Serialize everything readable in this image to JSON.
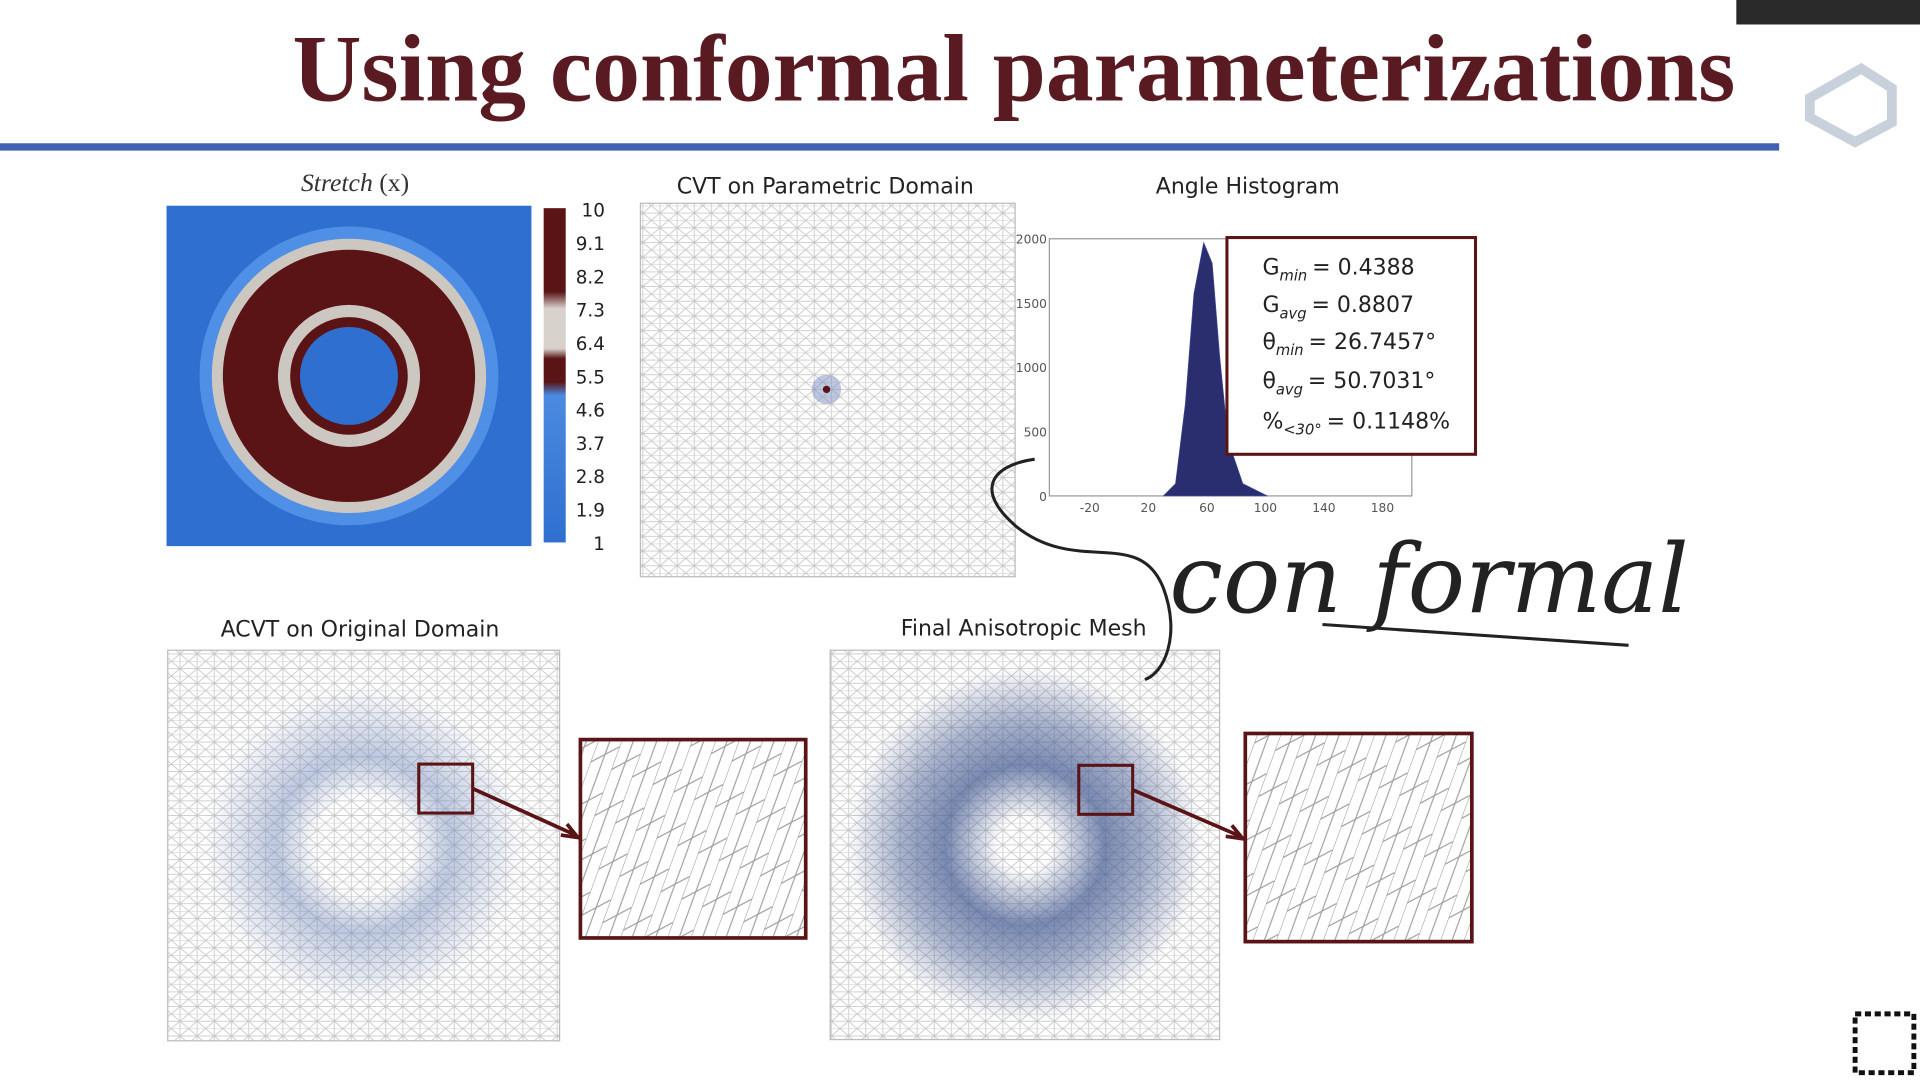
{
  "title": "Using conformal parameterizations",
  "stretch": {
    "title_main": "Stretch",
    "title_var": "(x)",
    "colorbar_ticks": [
      10,
      9.1,
      8.2,
      7.3,
      6.4,
      5.5,
      4.6,
      3.7,
      2.8,
      1.9,
      1
    ]
  },
  "cvt": {
    "title": "CVT on Parametric Domain"
  },
  "histogram": {
    "title": "Angle Histogram",
    "yticks": [
      2000,
      1500,
      1000,
      500,
      0
    ],
    "xticks": [
      -20,
      20,
      60,
      100,
      140,
      180
    ],
    "stats": [
      {
        "symbol": "G",
        "sub": "min",
        "text": "= 0.4388"
      },
      {
        "symbol": "G",
        "sub": "avg",
        "text": "= 0.8807"
      },
      {
        "symbol": "θ",
        "sub": "min",
        "text": "= 26.7457°"
      },
      {
        "symbol": "θ",
        "sub": "avg",
        "text": "= 50.7031°"
      },
      {
        "symbol": "%",
        "sub": "<30°",
        "text": "= 0.1148%"
      }
    ]
  },
  "acvt": {
    "title": "ACVT on Original Domain"
  },
  "final": {
    "title": "Final Anisotropic Mesh"
  },
  "annotation": {
    "handwriting": "con formal"
  }
}
